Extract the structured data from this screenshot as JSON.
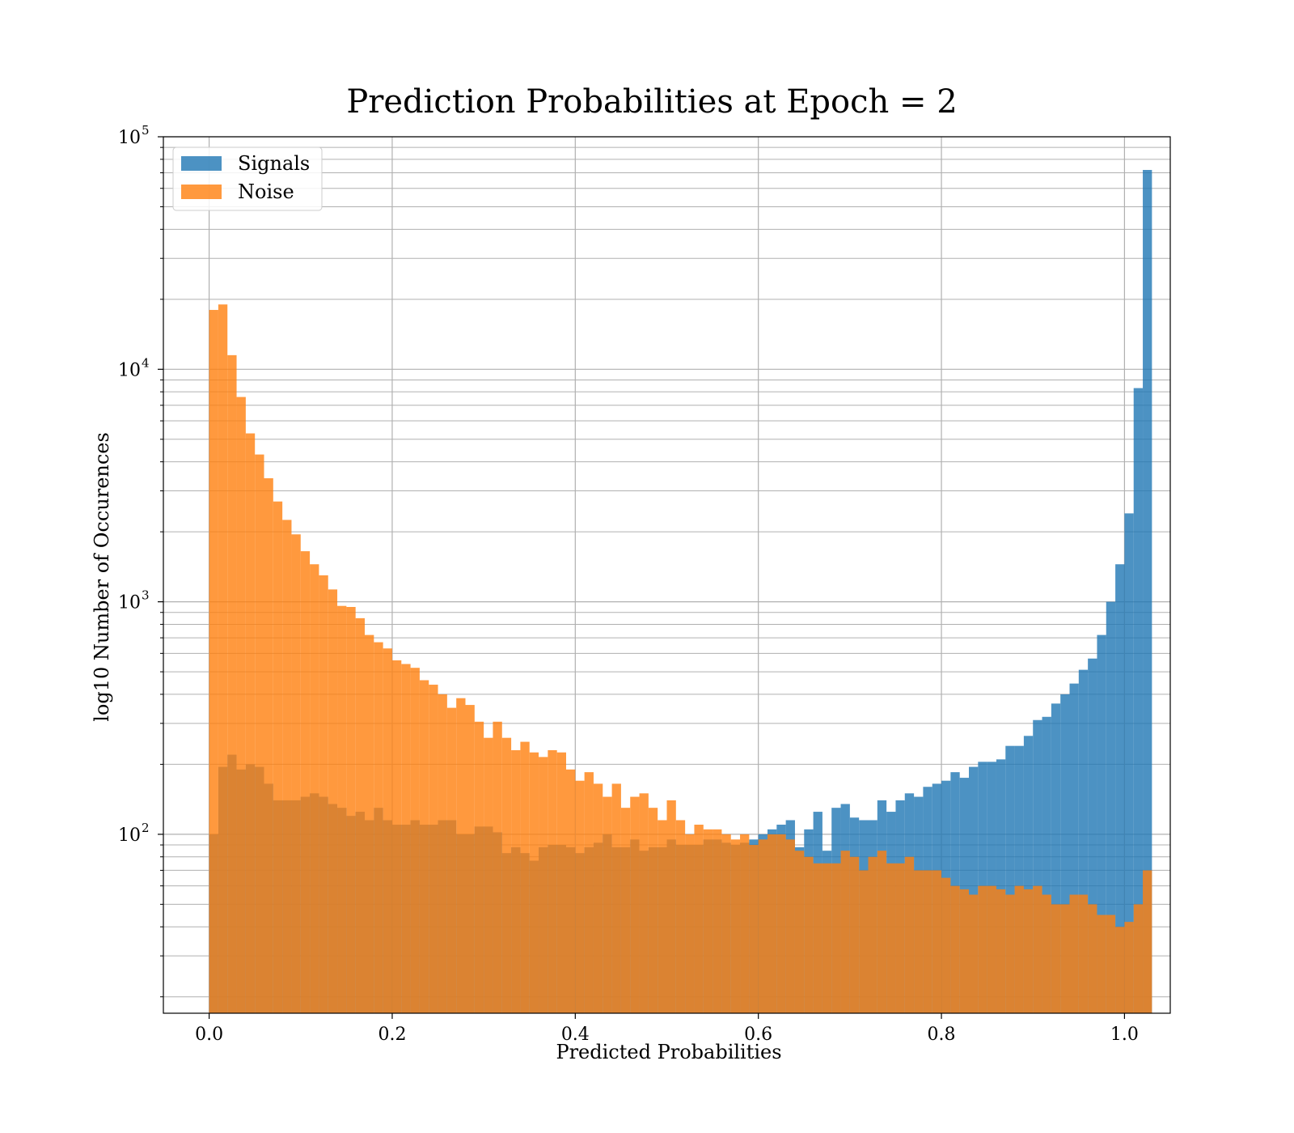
{
  "chart_data": {
    "type": "bar",
    "title": "Prediction Probabilities at Epoch = 2",
    "xlabel": "Predicted Probabilities",
    "ylabel": "log10 Number of Occurences",
    "xlim": [
      -0.05,
      1.05
    ],
    "ylim": [
      17,
      100000
    ],
    "yscale": "log",
    "grid": true,
    "legend_position": "upper-left",
    "x_ticks": [
      {
        "value": 0.0,
        "label": "0.0"
      },
      {
        "value": 0.2,
        "label": "0.2"
      },
      {
        "value": 0.4,
        "label": "0.4"
      },
      {
        "value": 0.6,
        "label": "0.6"
      },
      {
        "value": 0.8,
        "label": "0.8"
      },
      {
        "value": 1.0,
        "label": "1.0"
      }
    ],
    "y_ticks": [
      {
        "value": 100,
        "base": "10",
        "exp": "2"
      },
      {
        "value": 1000,
        "base": "10",
        "exp": "3"
      },
      {
        "value": 10000,
        "base": "10",
        "exp": "4"
      },
      {
        "value": 100000,
        "base": "10",
        "exp": "5"
      }
    ],
    "bin_start": 0.0,
    "bin_width": 0.01,
    "series": [
      {
        "name": "Signals",
        "color": "#1f77b4",
        "values": [
          100,
          195,
          220,
          190,
          200,
          195,
          165,
          140,
          140,
          140,
          145,
          150,
          145,
          135,
          130,
          120,
          125,
          115,
          130,
          115,
          110,
          110,
          115,
          110,
          110,
          115,
          115,
          100,
          100,
          108,
          108,
          102,
          83,
          88,
          83,
          77,
          88,
          90,
          90,
          88,
          83,
          88,
          92,
          100,
          88,
          88,
          95,
          85,
          88,
          88,
          95,
          90,
          90,
          90,
          95,
          95,
          92,
          90,
          92,
          95,
          100,
          105,
          110,
          115,
          88,
          105,
          125,
          85,
          130,
          135,
          118,
          115,
          115,
          140,
          125,
          140,
          150,
          145,
          160,
          165,
          170,
          185,
          175,
          195,
          205,
          205,
          210,
          240,
          240,
          265,
          310,
          320,
          365,
          400,
          445,
          510,
          570,
          720,
          1000,
          1450,
          2400,
          8300,
          72000
        ]
      },
      {
        "name": "Noise",
        "color": "#ff7f0e",
        "values": [
          18000,
          19000,
          11500,
          7600,
          5300,
          4300,
          3400,
          2700,
          2250,
          1950,
          1650,
          1450,
          1300,
          1130,
          960,
          950,
          850,
          720,
          670,
          630,
          560,
          540,
          520,
          460,
          440,
          400,
          350,
          385,
          360,
          305,
          260,
          305,
          260,
          230,
          250,
          225,
          215,
          230,
          225,
          190,
          170,
          185,
          165,
          145,
          165,
          130,
          145,
          150,
          130,
          115,
          140,
          115,
          100,
          110,
          105,
          105,
          100,
          95,
          100,
          90,
          95,
          100,
          100,
          95,
          85,
          80,
          75,
          75,
          75,
          85,
          80,
          70,
          80,
          85,
          75,
          75,
          80,
          70,
          70,
          70,
          65,
          60,
          58,
          55,
          60,
          60,
          58,
          55,
          60,
          58,
          60,
          55,
          50,
          50,
          55,
          55,
          50,
          45,
          45,
          40,
          42,
          50,
          70
        ]
      }
    ]
  }
}
